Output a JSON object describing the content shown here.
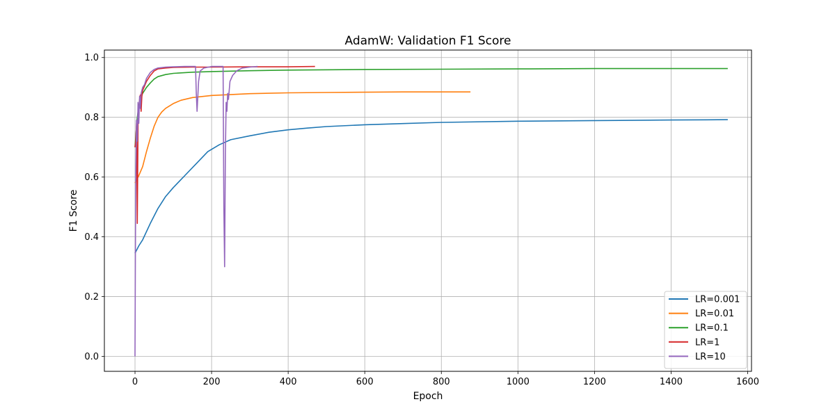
{
  "chart_data": {
    "type": "line",
    "title": "AdamW: Validation F1 Score",
    "xlabel": "Epoch",
    "ylabel": "F1 Score",
    "xlim": [
      -80,
      1610
    ],
    "ylim": [
      -0.05,
      1.025
    ],
    "xticks": [
      0,
      200,
      400,
      600,
      800,
      1000,
      1200,
      1400,
      1600
    ],
    "xtick_labels": [
      "0",
      "200",
      "400",
      "600",
      "800",
      "1000",
      "1200",
      "1400",
      "1600"
    ],
    "yticks": [
      0.0,
      0.2,
      0.4,
      0.6,
      0.8,
      1.0
    ],
    "ytick_labels": [
      "0.0",
      "0.2",
      "0.4",
      "0.6",
      "0.8",
      "1.0"
    ],
    "grid": true,
    "legend_position": "lower-right",
    "series": [
      {
        "name": "LR=0.001",
        "color": "#1f77b4",
        "x": [
          0,
          10,
          20,
          40,
          60,
          80,
          100,
          130,
          160,
          190,
          220,
          250,
          300,
          350,
          400,
          450,
          500,
          600,
          700,
          800,
          1000,
          1200,
          1400,
          1548
        ],
        "y": [
          0.345,
          0.37,
          0.39,
          0.445,
          0.495,
          0.535,
          0.565,
          0.605,
          0.645,
          0.685,
          0.708,
          0.725,
          0.738,
          0.75,
          0.758,
          0.764,
          0.769,
          0.775,
          0.779,
          0.783,
          0.787,
          0.789,
          0.791,
          0.792
        ]
      },
      {
        "name": "LR=0.01",
        "color": "#ff7f0e",
        "x": [
          0,
          10,
          20,
          30,
          40,
          50,
          60,
          70,
          80,
          100,
          120,
          150,
          200,
          300,
          400,
          500,
          600,
          700,
          800,
          876
        ],
        "y": [
          0.58,
          0.605,
          0.635,
          0.685,
          0.73,
          0.77,
          0.8,
          0.818,
          0.83,
          0.846,
          0.857,
          0.866,
          0.873,
          0.879,
          0.882,
          0.883,
          0.884,
          0.885,
          0.885,
          0.885
        ]
      },
      {
        "name": "LR=0.1",
        "color": "#2ca02c",
        "x": [
          0,
          5,
          10,
          15,
          20,
          30,
          40,
          50,
          60,
          80,
          100,
          150,
          200,
          300,
          400,
          600,
          800,
          1000,
          1200,
          1400,
          1548
        ],
        "y": [
          0.7,
          0.79,
          0.84,
          0.865,
          0.88,
          0.9,
          0.915,
          0.928,
          0.936,
          0.943,
          0.947,
          0.951,
          0.953,
          0.956,
          0.958,
          0.96,
          0.961,
          0.962,
          0.963,
          0.963,
          0.963
        ]
      },
      {
        "name": "LR=1",
        "color": "#d62728",
        "x": [
          0,
          2,
          4,
          6,
          8,
          10,
          12,
          14,
          16,
          18,
          20,
          25,
          30,
          40,
          50,
          60,
          80,
          100,
          150,
          200,
          300,
          400,
          470
        ],
        "y": [
          0.7,
          0.72,
          0.78,
          0.445,
          0.78,
          0.82,
          0.86,
          0.875,
          0.82,
          0.87,
          0.89,
          0.905,
          0.92,
          0.94,
          0.955,
          0.962,
          0.965,
          0.967,
          0.968,
          0.968,
          0.969,
          0.969,
          0.97
        ]
      },
      {
        "name": "LR=10",
        "color": "#9467bd",
        "x": [
          0,
          1,
          2,
          4,
          6,
          8,
          10,
          12,
          14,
          16,
          20,
          25,
          30,
          40,
          50,
          60,
          80,
          100,
          130,
          158,
          160,
          162,
          166,
          170,
          180,
          200,
          230,
          232,
          234,
          236,
          238,
          240,
          242,
          244,
          248,
          255,
          265,
          280,
          300,
          320
        ],
        "y": [
          0.0,
          0.35,
          0.6,
          0.79,
          0.72,
          0.85,
          0.78,
          0.87,
          0.83,
          0.88,
          0.9,
          0.91,
          0.93,
          0.95,
          0.96,
          0.965,
          0.968,
          0.969,
          0.97,
          0.97,
          0.88,
          0.82,
          0.92,
          0.955,
          0.965,
          0.97,
          0.97,
          0.5,
          0.3,
          0.68,
          0.85,
          0.82,
          0.88,
          0.86,
          0.92,
          0.94,
          0.955,
          0.965,
          0.968,
          0.97
        ]
      }
    ]
  }
}
